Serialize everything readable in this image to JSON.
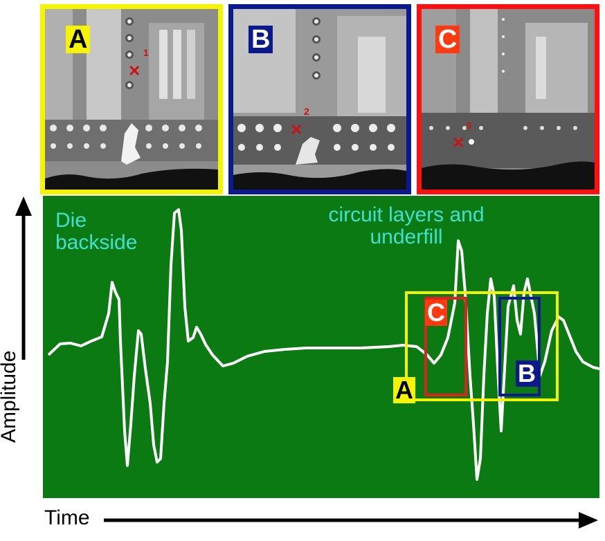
{
  "panels": [
    {
      "label": "A",
      "marker": "1",
      "border": "#f5f500",
      "label_bg": "#f5f500",
      "label_color": "#000000"
    },
    {
      "label": "B",
      "marker": "2",
      "border": "#0a1a8c",
      "label_bg": "#0a1a8c",
      "label_color": "#ffffff"
    },
    {
      "label": "C",
      "marker": "3",
      "border": "#ff1010",
      "label_bg": "#ff3a10",
      "label_color": "#ffffff"
    }
  ],
  "plot": {
    "background": "#0c7a12",
    "trace_color": "#ffffff",
    "annotations": {
      "die": "Die backside",
      "circuit": "circuit layers and underfill"
    },
    "boxes": {
      "a": "A",
      "b": "B",
      "c": "C"
    }
  },
  "axes": {
    "y": "Amplitude",
    "x": "Time"
  },
  "icons": {
    "y_arrow": "arrow-up-icon",
    "x_arrow": "arrow-right-icon",
    "crosshair": "x-mark-icon"
  }
}
